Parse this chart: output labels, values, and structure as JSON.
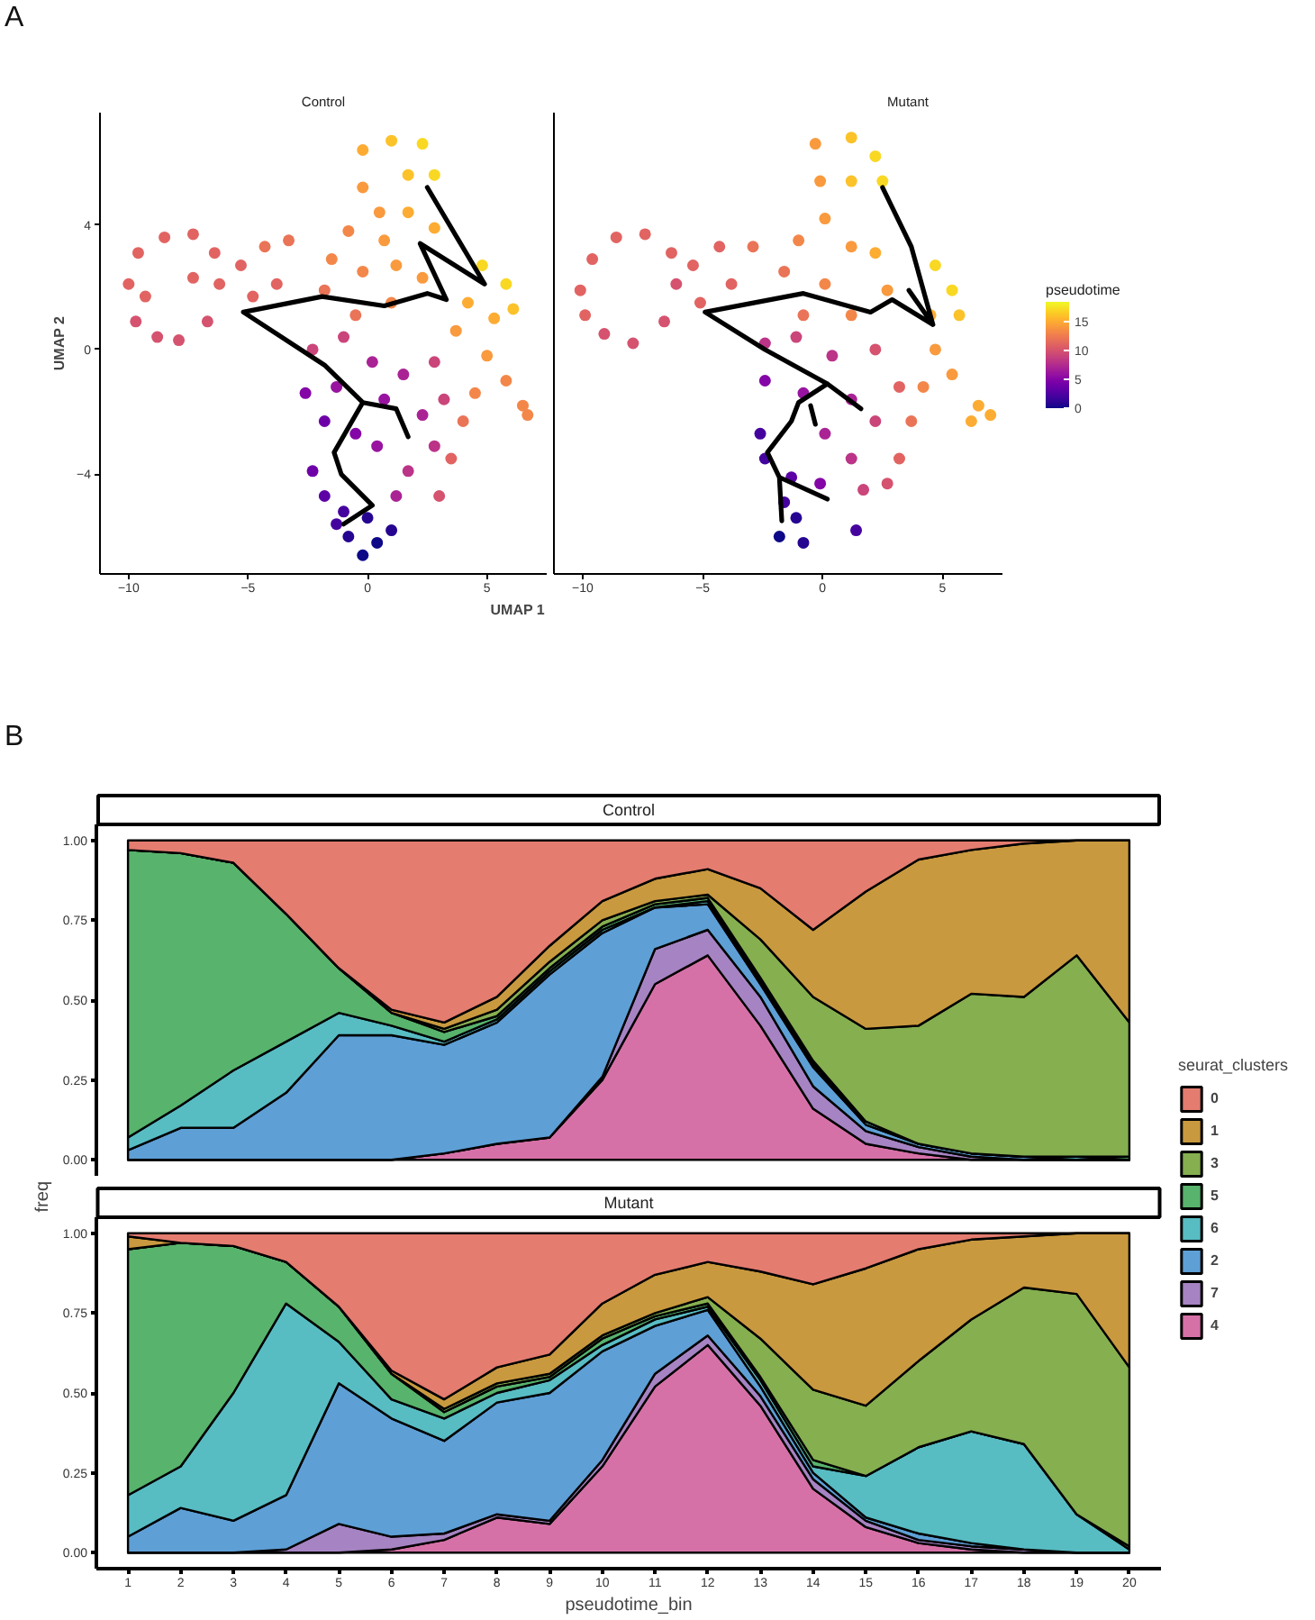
{
  "chart_data": [
    {
      "type": "scatter",
      "title": "Control",
      "annotations": [
        "A"
      ],
      "xlabel": "UMAP 1",
      "ylabel": "UMAP 2",
      "xlim": [
        -11.2,
        7.5
      ],
      "xticks": [
        -10,
        -5,
        0,
        5
      ],
      "ylim": [
        -7.2,
        7.6
      ],
      "yticks": [
        -4,
        0,
        4
      ],
      "series": [
        {
          "type": "scatter",
          "marker": "circle",
          "x": [
            -10.0,
            -9.6,
            -8.5,
            -7.3,
            -6.4,
            -6.2,
            -6.7,
            -7.9,
            -8.8,
            -9.7,
            -9.3,
            -7.3,
            -5.3,
            -4.3,
            -3.3,
            -4.8,
            -3.8,
            -0.2,
            1.0,
            2.3,
            2.8,
            1.7,
            -0.2,
            0.5,
            -0.8,
            0.7,
            -1.5,
            -0.2,
            1.2,
            -1.8,
            -0.5,
            1.0,
            2.3,
            2.8,
            1.7,
            4.8,
            5.8,
            6.1,
            5.3,
            4.2,
            3.7,
            5.0,
            5.8,
            6.5,
            6.7,
            4.5,
            4.0,
            3.5,
            3.0,
            -2.3,
            -1.0,
            0.2,
            1.5,
            2.8,
            3.2,
            -2.6,
            -1.3,
            0.7,
            2.3,
            2.8,
            1.7,
            1.2,
            -0.5,
            -1.8,
            0.4,
            -2.3,
            -1.8,
            -1.0,
            0.0,
            1.0,
            -0.8,
            0.4,
            -1.3,
            -0.2
          ],
          "values": [
            2.1,
            3.1,
            3.6,
            3.7,
            3.1,
            2.1,
            0.9,
            0.3,
            0.4,
            0.9,
            1.7,
            2.3,
            2.7,
            3.3,
            3.5,
            1.7,
            2.1,
            6.4,
            6.7,
            6.6,
            5.6,
            5.6,
            5.2,
            4.4,
            3.8,
            3.5,
            2.9,
            2.5,
            2.7,
            1.9,
            1.1,
            1.5,
            2.3,
            3.9,
            4.4,
            2.7,
            2.1,
            1.3,
            1.0,
            1.5,
            0.6,
            -0.2,
            -1.0,
            -1.8,
            -2.1,
            -1.4,
            -2.3,
            -3.5,
            -4.7,
            0.0,
            0.4,
            -0.4,
            -0.8,
            -0.4,
            -1.6,
            -1.4,
            -1.2,
            -1.6,
            -2.1,
            -3.1,
            -3.9,
            -4.7,
            -2.7,
            -2.3,
            -3.1,
            -3.9,
            -4.7,
            -5.2,
            -5.4,
            -5.8,
            -6.0,
            -6.2,
            -5.6,
            -6.6
          ],
          "colors": [
            "#e16462",
            "#e16462",
            "#e16462",
            "#e16462",
            "#e16462",
            "#e16462",
            "#d5536f",
            "#d5536f",
            "#d5536f",
            "#d5536f",
            "#e16462",
            "#e16462",
            "#e16462",
            "#ea7457",
            "#ea7457",
            "#e16462",
            "#e16462",
            "#fdac33",
            "#fcc22a",
            "#f9d824",
            "#f9d824",
            "#fcc22a",
            "#f99a3e",
            "#f99a3e",
            "#f3874a",
            "#f99a3e",
            "#f3874a",
            "#f3874a",
            "#f99a3e",
            "#ea7457",
            "#ea7457",
            "#f3874a",
            "#f99a3e",
            "#fdac33",
            "#fdac33",
            "#f9d824",
            "#f9d824",
            "#fcc22a",
            "#fdac33",
            "#fdac33",
            "#f99a3e",
            "#f99a3e",
            "#f3874a",
            "#f3874a",
            "#f3874a",
            "#f3874a",
            "#ea7457",
            "#e16462",
            "#d5536f",
            "#ca457a",
            "#ca457a",
            "#aa2395",
            "#aa2395",
            "#ca457a",
            "#ca457a",
            "#8506a6",
            "#9814a0",
            "#9814a0",
            "#aa2395",
            "#bb3488",
            "#bb3488",
            "#aa2395",
            "#8506a6",
            "#6e00a8",
            "#9814a0",
            "#6e00a8",
            "#5c01a6",
            "#45039e",
            "#260591",
            "#260591",
            "#260591",
            "#0d0887",
            "#45039e",
            "#0d0887"
          ]
        },
        {
          "type": "line",
          "color": "#000000",
          "x": [
            2.5,
            4.9,
            2.2,
            3.3,
            2.5,
            0.7,
            -1.9,
            -5.2,
            -1.8,
            -0.2,
            1.2,
            1.7,
            null,
            -0.2,
            -1.4,
            -1.1,
            0.2,
            -1.0
          ],
          "values": [
            5.2,
            2.1,
            3.4,
            1.6,
            1.8,
            1.4,
            1.7,
            1.2,
            -0.5,
            -1.7,
            -1.9,
            -2.8,
            null,
            -1.7,
            -3.3,
            -4.0,
            -5.0,
            -5.6
          ]
        }
      ]
    },
    {
      "type": "scatter",
      "title": "Mutant",
      "clabel": "pseudotime",
      "clim": [
        0,
        18.4
      ],
      "cticks": [
        0,
        5,
        10,
        15
      ],
      "tick_labels": "x",
      "xlim": [
        -11.2,
        7.5
      ],
      "xticks": [
        -10,
        -5,
        0,
        5
      ],
      "ylim": [
        -7.2,
        7.6
      ],
      "series": [
        {
          "type": "scatter",
          "marker": "circle",
          "x": [
            -10.1,
            -9.6,
            -8.6,
            -7.4,
            -6.3,
            -6.1,
            -6.6,
            -7.9,
            -9.1,
            -9.9,
            -5.4,
            -4.3,
            -2.9,
            -3.8,
            -5.1,
            -0.3,
            1.2,
            2.2,
            2.5,
            1.2,
            -0.1,
            0.1,
            -1.0,
            1.2,
            -1.6,
            0.1,
            2.2,
            -0.8,
            1.2,
            2.7,
            4.7,
            5.4,
            5.7,
            4.5,
            4.7,
            5.4,
            6.5,
            7.0,
            6.2,
            4.2,
            3.7,
            3.2,
            2.7,
            -2.4,
            -1.1,
            0.4,
            2.2,
            3.2,
            -2.4,
            -0.8,
            1.2,
            2.2,
            1.2,
            1.7,
            0.1,
            -0.1,
            -2.6,
            -2.4,
            -1.3,
            -1.6,
            -1.1,
            -1.8,
            1.4,
            -0.8
          ],
          "values": [
            1.9,
            2.9,
            3.6,
            3.7,
            3.1,
            2.1,
            0.9,
            0.2,
            0.5,
            1.1,
            2.7,
            3.3,
            3.3,
            2.1,
            1.5,
            6.6,
            6.8,
            6.2,
            5.4,
            5.4,
            5.4,
            4.2,
            3.5,
            3.3,
            2.5,
            2.1,
            3.1,
            1.1,
            1.1,
            1.9,
            2.7,
            1.9,
            1.1,
            1.1,
            0.0,
            -0.8,
            -1.8,
            -2.1,
            -2.3,
            -1.2,
            -2.3,
            -3.5,
            -4.3,
            0.2,
            0.4,
            -0.2,
            0.0,
            -1.2,
            -1.0,
            -1.4,
            -1.6,
            -2.3,
            -3.5,
            -4.5,
            -2.7,
            -4.3,
            -2.7,
            -3.5,
            -4.1,
            -4.9,
            -5.4,
            -6.0,
            -5.8,
            -6.2
          ],
          "colors": [
            "#e16462",
            "#e16462",
            "#e16462",
            "#e16462",
            "#e16462",
            "#d5536f",
            "#d5536f",
            "#d5536f",
            "#d5536f",
            "#e16462",
            "#e16462",
            "#e16462",
            "#ea7457",
            "#e16462",
            "#e16462",
            "#f99a3e",
            "#fcc22a",
            "#f9d824",
            "#f9d824",
            "#fcc22a",
            "#f99a3e",
            "#f99a3e",
            "#f3874a",
            "#f99a3e",
            "#ea7457",
            "#f3874a",
            "#fdac33",
            "#ea7457",
            "#f3874a",
            "#f99a3e",
            "#f9d824",
            "#f9d824",
            "#fcc22a",
            "#fdac33",
            "#f99a3e",
            "#f99a3e",
            "#fdac33",
            "#fdac33",
            "#fdac33",
            "#f3874a",
            "#ea7457",
            "#e16462",
            "#d5536f",
            "#bb3488",
            "#ca457a",
            "#bb3488",
            "#d5536f",
            "#e16462",
            "#8506a6",
            "#9814a0",
            "#aa2395",
            "#ca457a",
            "#bb3488",
            "#ca457a",
            "#aa2395",
            "#8506a6",
            "#45039e",
            "#45039e",
            "#5c01a6",
            "#45039e",
            "#260591",
            "#0d0887",
            "#45039e",
            "#260591"
          ]
        },
        {
          "type": "line",
          "color": "#000000",
          "x": [
            2.5,
            3.7,
            4.6,
            2.9,
            2.0,
            -0.8,
            -4.9,
            -2.4,
            0.2,
            1.6,
            null,
            0.2,
            -1.0,
            -1.3,
            -2.3,
            -1.8,
            -1.7,
            null,
            -1.8,
            0.2,
            null,
            3.6,
            4.6,
            null,
            -0.5,
            -0.3
          ],
          "values": [
            5.2,
            3.3,
            0.8,
            1.6,
            1.2,
            1.8,
            1.2,
            0.0,
            -1.1,
            -1.9,
            null,
            -1.1,
            -1.7,
            -2.3,
            -3.3,
            -4.1,
            -5.5,
            null,
            -4.1,
            -4.8,
            null,
            1.9,
            0.8,
            null,
            -1.8,
            -2.4
          ]
        }
      ]
    },
    {
      "type": "area",
      "stacked": true,
      "title": "Control",
      "annotations": [
        "B"
      ],
      "legend": "right",
      "legend_title": "seurat_clusters",
      "tick_labels": "y",
      "x": [
        1,
        2,
        3,
        4,
        5,
        6,
        7,
        8,
        9,
        10,
        11,
        12,
        13,
        14,
        15,
        16,
        17,
        18,
        19,
        20
      ],
      "ylim": [
        -0.05,
        1.05
      ],
      "yticks": [
        {
          "value": 0,
          "label": "0.00"
        },
        {
          "value": 0.25,
          "label": "0.25"
        },
        {
          "value": 0.5,
          "label": "0.50"
        },
        {
          "value": 0.75,
          "label": "0.75"
        },
        {
          "value": 1,
          "label": "1.00"
        }
      ],
      "series": [
        {
          "name": "4",
          "color": "#d671a8",
          "values": [
            0,
            0,
            0,
            0,
            0,
            0,
            0.02,
            0.05,
            0.07,
            0.25,
            0.55,
            0.64,
            0.42,
            0.16,
            0.05,
            0.02,
            0,
            0,
            0,
            0
          ]
        },
        {
          "name": "7",
          "color": "#a683c2",
          "values": [
            0,
            0,
            0,
            0,
            0,
            0,
            0,
            0,
            0,
            0.01,
            0.11,
            0.08,
            0.09,
            0.07,
            0.04,
            0.02,
            0.01,
            0,
            0,
            0
          ]
        },
        {
          "name": "2",
          "color": "#5e9fd6",
          "values": [
            0.03,
            0.1,
            0.1,
            0.21,
            0.39,
            0.39,
            0.34,
            0.38,
            0.51,
            0.45,
            0.13,
            0.08,
            0.04,
            0.06,
            0.02,
            0.01,
            0.01,
            0.01,
            0,
            0
          ]
        },
        {
          "name": "6",
          "color": "#58bcc3",
          "values": [
            0.04,
            0.07,
            0.18,
            0.16,
            0.07,
            0.03,
            0.01,
            0.01,
            0.01,
            0.01,
            0,
            0.01,
            0.01,
            0.01,
            0.01,
            0,
            0,
            0,
            0.01,
            0
          ]
        },
        {
          "name": "5",
          "color": "#58b36d",
          "values": [
            0.9,
            0.79,
            0.65,
            0.4,
            0.14,
            0.04,
            0.03,
            0.01,
            0.01,
            0.01,
            0.01,
            0.01,
            0.01,
            0.01,
            0,
            0,
            0,
            0,
            0,
            0.01
          ]
        },
        {
          "name": "3",
          "color": "#86af50",
          "values": [
            0,
            0,
            0,
            0,
            0,
            0,
            0.01,
            0.02,
            0.02,
            0.02,
            0.01,
            0.01,
            0.12,
            0.2,
            0.29,
            0.37,
            0.5,
            0.5,
            0.63,
            0.42
          ]
        },
        {
          "name": "1",
          "color": "#c9993f",
          "values": [
            0,
            0,
            0,
            0,
            0,
            0.01,
            0.02,
            0.04,
            0.05,
            0.06,
            0.07,
            0.08,
            0.16,
            0.21,
            0.43,
            0.52,
            0.45,
            0.48,
            0.36,
            0.57
          ]
        },
        {
          "name": "0",
          "color": "#e47c70",
          "values": [
            0.03,
            0.04,
            0.07,
            0.23,
            0.4,
            0.53,
            0.57,
            0.49,
            0.33,
            0.19,
            0.12,
            0.09,
            0.15,
            0.28,
            0.16,
            0.06,
            0.03,
            0.01,
            0,
            0
          ]
        }
      ]
    },
    {
      "type": "area",
      "stacked": true,
      "title": "Mutant",
      "xlabel": "pseudotime_bin",
      "ylabel": "freq",
      "x": [
        1,
        2,
        3,
        4,
        5,
        6,
        7,
        8,
        9,
        10,
        11,
        12,
        13,
        14,
        15,
        16,
        17,
        18,
        19,
        20
      ],
      "xlim": [
        0.4,
        20.6
      ],
      "xticks": [
        1,
        2,
        3,
        4,
        5,
        6,
        7,
        8,
        9,
        10,
        11,
        12,
        13,
        14,
        15,
        16,
        17,
        18,
        19,
        20
      ],
      "ylim": [
        -0.05,
        1.05
      ],
      "yticks": [
        {
          "value": 0,
          "label": "0.00"
        },
        {
          "value": 0.25,
          "label": "0.25"
        },
        {
          "value": 0.5,
          "label": "0.50"
        },
        {
          "value": 0.75,
          "label": "0.75"
        },
        {
          "value": 1,
          "label": "1.00"
        }
      ],
      "series": [
        {
          "color": "#d671a8",
          "values": [
            0,
            0,
            0,
            0,
            0,
            0.01,
            0.04,
            0.11,
            0.09,
            0.27,
            0.52,
            0.65,
            0.46,
            0.2,
            0.08,
            0.03,
            0.01,
            0,
            0,
            0
          ]
        },
        {
          "color": "#a683c2",
          "values": [
            0,
            0,
            0,
            0.01,
            0.09,
            0.04,
            0.02,
            0.01,
            0.01,
            0.02,
            0.04,
            0.03,
            0.03,
            0.03,
            0.02,
            0.01,
            0.01,
            0.01,
            0,
            0
          ]
        },
        {
          "color": "#5e9fd6",
          "values": [
            0.05,
            0.14,
            0.1,
            0.17,
            0.44,
            0.37,
            0.29,
            0.35,
            0.4,
            0.34,
            0.15,
            0.08,
            0.03,
            0.02,
            0.01,
            0.02,
            0.01,
            0,
            0,
            0
          ]
        },
        {
          "color": "#58bcc3",
          "values": [
            0.13,
            0.13,
            0.4,
            0.6,
            0.13,
            0.06,
            0.07,
            0.03,
            0.04,
            0.02,
            0.02,
            0.01,
            0.02,
            0.02,
            0.13,
            0.27,
            0.35,
            0.33,
            0.12,
            0.01
          ]
        },
        {
          "color": "#58b36d",
          "values": [
            0.77,
            0.7,
            0.46,
            0.13,
            0.11,
            0.08,
            0.02,
            0.02,
            0.01,
            0.02,
            0.01,
            0.01,
            0.01,
            0.02,
            0,
            0,
            0,
            0,
            0,
            0.01
          ]
        },
        {
          "color": "#86af50",
          "values": [
            0,
            0,
            0,
            0,
            0,
            0,
            0.01,
            0.01,
            0.01,
            0.01,
            0.01,
            0.02,
            0.12,
            0.22,
            0.22,
            0.27,
            0.35,
            0.49,
            0.69,
            0.56
          ]
        },
        {
          "color": "#c9993f",
          "values": [
            0.04,
            0,
            0,
            0,
            0,
            0.01,
            0.03,
            0.05,
            0.06,
            0.1,
            0.12,
            0.11,
            0.21,
            0.33,
            0.43,
            0.35,
            0.25,
            0.16,
            0.19,
            0.42
          ]
        },
        {
          "color": "#e47c70",
          "values": [
            0.01,
            0.03,
            0.04,
            0.09,
            0.23,
            0.43,
            0.52,
            0.42,
            0.38,
            0.22,
            0.13,
            0.09,
            0.12,
            0.16,
            0.11,
            0.05,
            0.02,
            0.01,
            0,
            0
          ]
        }
      ]
    }
  ]
}
